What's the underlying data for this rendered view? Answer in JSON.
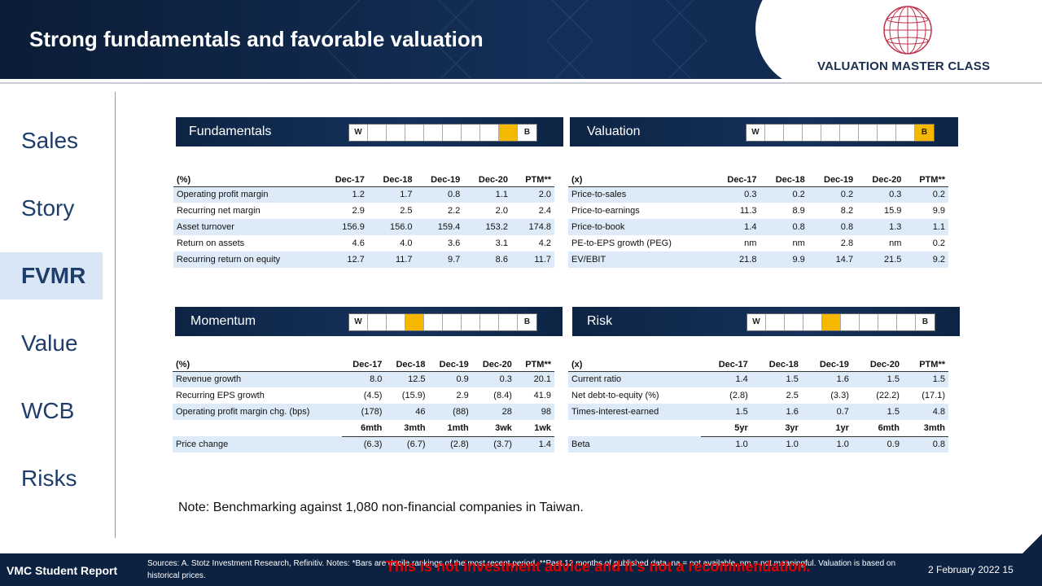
{
  "header": {
    "title": "Strong fundamentals and favorable valuation",
    "logo_text": "VALUATION MASTER CLASS"
  },
  "nav": {
    "items": [
      {
        "label": "Sales"
      },
      {
        "label": "Story"
      },
      {
        "label": "FVMR"
      },
      {
        "label": "Value"
      },
      {
        "label": "WCB"
      },
      {
        "label": "Risks"
      }
    ],
    "active": "FVMR"
  },
  "panels": {
    "fundamentals": {
      "title": "Fundamentals",
      "w": "W",
      "b": "B"
    },
    "valuation": {
      "title": "Valuation",
      "w": "W",
      "b": "B"
    },
    "momentum": {
      "title": "Momentum",
      "w": "W",
      "b": "B"
    },
    "risk": {
      "title": "Risk",
      "w": "W",
      "b": "B"
    }
  },
  "fund_table": {
    "headers": [
      "(%)",
      "Dec-17",
      "Dec-18",
      "Dec-19",
      "Dec-20",
      "PTM**"
    ],
    "rows": [
      [
        "Operating profit margin",
        "1.2",
        "1.7",
        "0.8",
        "1.1",
        "2.0"
      ],
      [
        "Recurring net margin",
        "2.9",
        "2.5",
        "2.2",
        "2.0",
        "2.4"
      ],
      [
        "Asset turnover",
        "156.9",
        "156.0",
        "159.4",
        "153.2",
        "174.8"
      ],
      [
        "Return on assets",
        "4.6",
        "4.0",
        "3.6",
        "3.1",
        "4.2"
      ],
      [
        "Recurring return on equity",
        "12.7",
        "11.7",
        "9.7",
        "8.6",
        "11.7"
      ]
    ]
  },
  "val_table": {
    "headers": [
      "(x)",
      "Dec-17",
      "Dec-18",
      "Dec-19",
      "Dec-20",
      "PTM**"
    ],
    "rows": [
      [
        "Price-to-sales",
        "0.3",
        "0.2",
        "0.2",
        "0.3",
        "0.2"
      ],
      [
        "Price-to-earnings",
        "11.3",
        "8.9",
        "8.2",
        "15.9",
        "9.9"
      ],
      [
        "Price-to-book",
        "1.4",
        "0.8",
        "0.8",
        "1.3",
        "1.1"
      ],
      [
        "PE-to-EPS growth (PEG)",
        "nm",
        "nm",
        "2.8",
        "nm",
        "0.2"
      ],
      [
        "EV/EBIT",
        "21.8",
        "9.9",
        "14.7",
        "21.5",
        "9.2"
      ]
    ]
  },
  "mom_table": {
    "headers": [
      "(%)",
      "Dec-17",
      "Dec-18",
      "Dec-19",
      "Dec-20",
      "PTM**"
    ],
    "rows": [
      [
        "Revenue growth",
        "8.0",
        "12.5",
        "0.9",
        "0.3",
        "20.1"
      ],
      [
        "Recurring EPS growth",
        "(4.5)",
        "(15.9)",
        "2.9",
        "(8.4)",
        "41.9"
      ],
      [
        "Operating profit margin chg. (bps)",
        "(178)",
        "46",
        "(88)",
        "28",
        "98"
      ]
    ],
    "subheaders": [
      "6mth",
      "3mth",
      "1mth",
      "3wk",
      "1wk"
    ],
    "last_row": [
      "Price change",
      "(6.3)",
      "(6.7)",
      "(2.8)",
      "(3.7)",
      "1.4"
    ]
  },
  "risk_table": {
    "headers": [
      "(x)",
      "Dec-17",
      "Dec-18",
      "Dec-19",
      "Dec-20",
      "PTM**"
    ],
    "rows": [
      [
        "Current ratio",
        "1.4",
        "1.5",
        "1.6",
        "1.5",
        "1.5"
      ],
      [
        "Net debt-to-equity (%)",
        "(2.8)",
        "2.5",
        "(3.3)",
        "(22.2)",
        "(17.1)"
      ],
      [
        "Times-interest-earned",
        "1.5",
        "1.6",
        "0.7",
        "1.5",
        "4.8"
      ]
    ],
    "subheaders": [
      "5yr",
      "3yr",
      "1yr",
      "6mth",
      "3mth"
    ],
    "last_row": [
      "Beta",
      "1.0",
      "1.0",
      "1.0",
      "0.9",
      "0.8"
    ]
  },
  "note": "Note: Benchmarking against 1,080 non-financial companies in Taiwan.",
  "footer": {
    "left": "VMC Student Report",
    "sources": "Sources: A. Stotz Investment Research, Refinitiv. Notes: *Bars are decile rankings of the most recent period. **Past 12 months of published data. na = not available, nm = not meaningful. Valuation is based on historical prices.",
    "warning": "This is not investment advice and it's not a recommendation.",
    "date": "2 February 2022   15"
  }
}
